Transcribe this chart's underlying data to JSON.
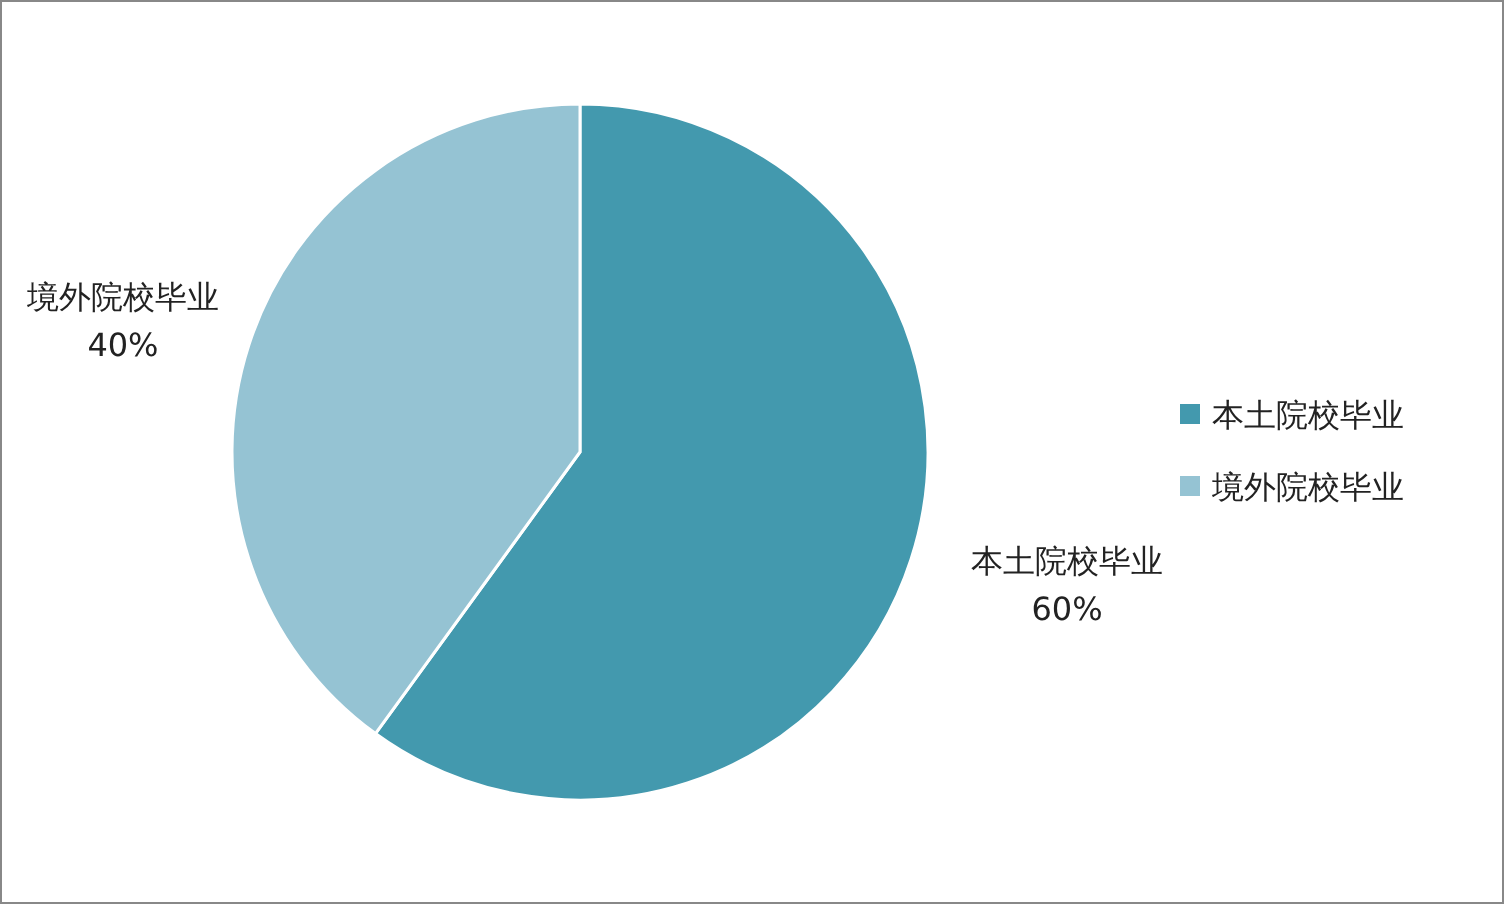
{
  "chart_data": {
    "type": "pie",
    "categories": [
      "本土院校毕业",
      "境外院校毕业"
    ],
    "values": [
      60,
      40
    ],
    "colors": [
      "#4399ae",
      "#95c3d3"
    ],
    "value_labels": [
      "60%",
      "40%"
    ],
    "legend": "right"
  }
}
